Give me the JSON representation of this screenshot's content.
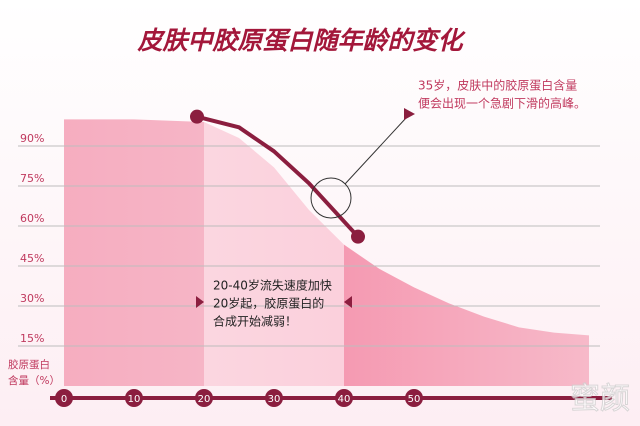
{
  "chart_data": {
    "type": "area",
    "title": "皮肤中胶原蛋白随年龄的变化",
    "y_label": [
      "胶原蛋白",
      "含量（%）"
    ],
    "x": [
      0,
      10,
      20,
      25,
      30,
      35,
      40,
      45,
      50,
      55,
      60,
      65,
      70,
      75
    ],
    "values": [
      100,
      100,
      99,
      93,
      82,
      66,
      53,
      44,
      37,
      31,
      26,
      22,
      20,
      19
    ],
    "highlight": {
      "x": [
        19,
        25,
        30,
        35,
        42
      ],
      "values": [
        101,
        97,
        88,
        76,
        56
      ]
    },
    "xlim": [
      0,
      78
    ],
    "ylim": [
      0,
      100
    ],
    "xticks": [
      0,
      10,
      20,
      30,
      40,
      50
    ],
    "yticks": [
      {
        "value": 15,
        "label": "15%"
      },
      {
        "value": 30,
        "label": "30%"
      },
      {
        "value": 45,
        "label": "45%"
      },
      {
        "value": 60,
        "label": "60%"
      },
      {
        "value": 75,
        "label": "75%"
      },
      {
        "value": 90,
        "label": "90%"
      }
    ],
    "grid": true,
    "annotations": [
      {
        "lines": [
          "35岁，皮肤中的胶原蛋白含量",
          "便会出现一个急剧下滑的高峰。"
        ]
      },
      {
        "lines": [
          "20-40岁流失速度加快",
          "20岁起，胶原蛋白的",
          "合成开始减弱！"
        ]
      }
    ],
    "watermark": "蜜颜"
  }
}
